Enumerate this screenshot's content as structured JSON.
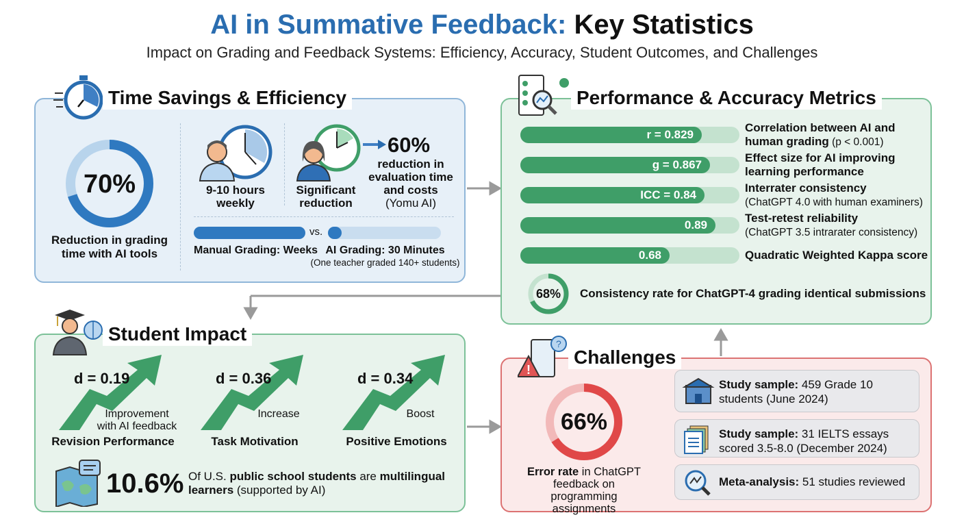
{
  "header": {
    "title_accent": "AI in Summative Feedback:",
    "title_rest": "Key Statistics",
    "subtitle": "Impact on Grading and Feedback Systems: Efficiency, Accuracy, Student Outcomes, and Challenges",
    "accent_color": "#2a6db0"
  },
  "time": {
    "title": "Time Savings & Efficiency",
    "donut_value": "70%",
    "donut_fraction": 0.7,
    "donut_label": "Reduction in grading time with AI tools",
    "teacher1_label": "9-10 hours weekly",
    "teacher2_label": "Significant reduction",
    "stat_value": "60%",
    "stat_label": "reduction in evaluation time and costs",
    "stat_source": "(Yomu AI)",
    "vs": "vs.",
    "manual_label": "Manual Grading: Weeks",
    "ai_label": "AI Grading: 30 Minutes",
    "ai_note": "(One teacher graded 140+ students)"
  },
  "metrics": {
    "title": "Performance & Accuracy Metrics",
    "bars": [
      {
        "value_label": "r = 0.829",
        "value": 0.829,
        "label": "Correlation between AI and",
        "label2": "human grading",
        "note": " (p < 0.001)"
      },
      {
        "value_label": "g = 0.867",
        "value": 0.867,
        "label": "Effect size for AI improving",
        "label2": "learning performance",
        "note": ""
      },
      {
        "value_label": "ICC = 0.84",
        "value": 0.84,
        "label": "Interrater consistency",
        "label2": "",
        "note": "(ChatGPT 4.0 with human examiners)"
      },
      {
        "value_label": "0.89",
        "value": 0.89,
        "label": "Test-retest reliability",
        "label2": "",
        "note": "(ChatGPT 3.5 intrarater consistency)"
      },
      {
        "value_label": "0.68",
        "value": 0.68,
        "label": "Quadratic Weighted Kappa score",
        "label2": "",
        "note": ""
      }
    ],
    "consistency_value": "68%",
    "consistency_fraction": 0.68,
    "consistency_label": "Consistency rate for ChatGPT-4 grading identical submissions"
  },
  "student": {
    "title": "Student Impact",
    "items": [
      {
        "d": "d = 0.19",
        "desc": "Improvement",
        "desc2": "with AI feedback",
        "label": "Revision Performance"
      },
      {
        "d": "d = 0.36",
        "desc": "Increase",
        "desc2": "",
        "label": "Task Motivation"
      },
      {
        "d": "d = 0.34",
        "desc": "Boost",
        "desc2": "",
        "label": "Positive Emotions"
      }
    ],
    "ml_value": "10.6%",
    "ml_pre": "Of U.S. ",
    "ml_b1": "public school students",
    "ml_mid": " are ",
    "ml_b2": "multilingual learners",
    "ml_post": " (supported by AI)"
  },
  "challenges": {
    "title": "Challenges",
    "donut_value": "66%",
    "donut_fraction": 0.66,
    "error_bold": "Error rate",
    "error_rest": " in ChatGPT feedback on programming assignments",
    "cards": [
      {
        "bold": "Study sample:",
        "text": " 459 Grade 10 students (June 2024)",
        "icon": "school-icon"
      },
      {
        "bold": "Study sample:",
        "text": " 31 IELTS essays scored 3.5-8.0 (December 2024)",
        "icon": "documents-icon"
      },
      {
        "bold": "Meta-analysis:",
        "text": " 51 studies reviewed",
        "icon": "magnifier-chart-icon"
      }
    ]
  }
}
